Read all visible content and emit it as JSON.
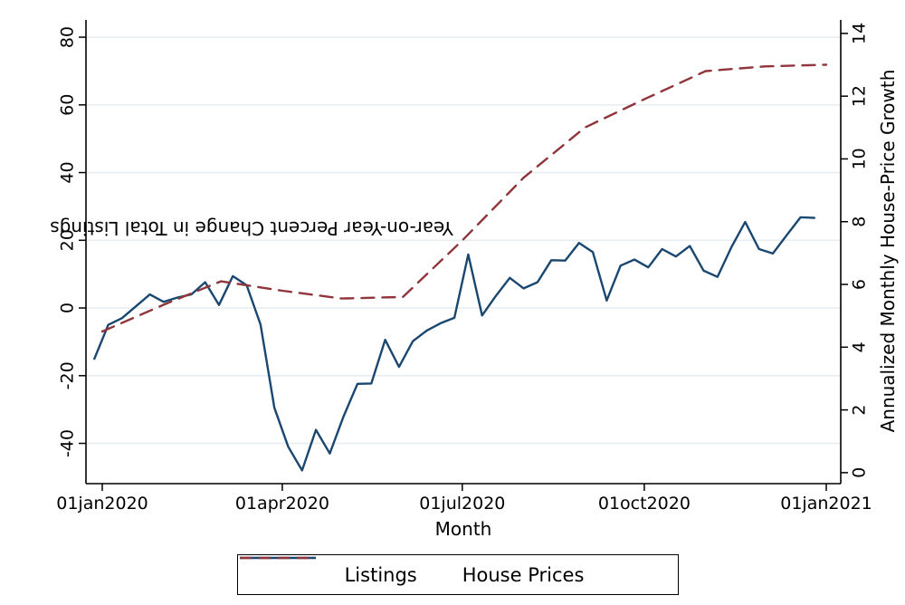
{
  "chart_data": {
    "type": "line",
    "title": "",
    "x_axis": {
      "title": "Month",
      "ticks": [
        {
          "date": "2020-01-01",
          "label": "01jan2020"
        },
        {
          "date": "2020-04-01",
          "label": "01apr2020"
        },
        {
          "date": "2020-07-01",
          "label": "01jul2020"
        },
        {
          "date": "2020-10-01",
          "label": "01oct2020"
        },
        {
          "date": "2021-01-01",
          "label": "01jan2021"
        }
      ]
    },
    "left_axis": {
      "title": "Year-on-Year Percent Change in Total Listings",
      "ticks": [
        -40,
        -20,
        0,
        20,
        40,
        60,
        80
      ],
      "range": [
        -51.9,
        85.1
      ]
    },
    "right_axis": {
      "title": "Annualized Monthly House-Price Growth",
      "ticks": [
        0,
        2,
        4,
        6,
        8,
        10,
        12,
        14
      ],
      "range": [
        -0.35,
        14.43
      ]
    },
    "grid": true,
    "legend_position": "bottom",
    "series": [
      {
        "name": "Listings",
        "axis": "left",
        "style": "solid",
        "color": "#1a476f",
        "frequency": "weekly",
        "dates": [
          "2019-12-28",
          "2020-01-04",
          "2020-01-11",
          "2020-01-18",
          "2020-01-25",
          "2020-02-01",
          "2020-02-08",
          "2020-02-15",
          "2020-02-22",
          "2020-02-29",
          "2020-03-07",
          "2020-03-14",
          "2020-03-21",
          "2020-03-28",
          "2020-04-04",
          "2020-04-11",
          "2020-04-18",
          "2020-04-25",
          "2020-05-02",
          "2020-05-09",
          "2020-05-16",
          "2020-05-23",
          "2020-05-30",
          "2020-06-06",
          "2020-06-13",
          "2020-06-20",
          "2020-06-27",
          "2020-07-04",
          "2020-07-11",
          "2020-07-18",
          "2020-07-25",
          "2020-08-01",
          "2020-08-08",
          "2020-08-15",
          "2020-08-22",
          "2020-08-29",
          "2020-09-05",
          "2020-09-12",
          "2020-09-19",
          "2020-09-26",
          "2020-10-03",
          "2020-10-10",
          "2020-10-17",
          "2020-10-24",
          "2020-10-31",
          "2020-11-07",
          "2020-11-14",
          "2020-11-21",
          "2020-11-28",
          "2020-12-05",
          "2020-12-12",
          "2020-12-19",
          "2020-12-26"
        ],
        "values": [
          -15,
          -5,
          -3,
          0.5,
          4,
          1.8,
          3.1,
          4,
          7.6,
          0.9,
          9.4,
          6.7,
          -4.9,
          -29.5,
          -41,
          -48,
          -36,
          -43,
          -32,
          -22.4,
          -22.3,
          -9.4,
          -17.4,
          -9.8,
          -6.7,
          -4.5,
          -2.9,
          15.8,
          -2.2,
          3.6,
          8.9,
          5.8,
          7.6,
          14.1,
          14.0,
          19.2,
          16.5,
          2.2,
          12.5,
          14.3,
          12.0,
          17.4,
          15.2,
          18.3,
          11.0,
          9.2,
          17.9,
          25.4,
          17.4,
          16.1,
          21.5,
          26.8,
          26.6
        ]
      },
      {
        "name": "House Prices",
        "axis": "right",
        "style": "dashed",
        "color": "#90353b",
        "frequency": "monthly",
        "dates": [
          "2020-01-01",
          "2020-02-01",
          "2020-03-01",
          "2020-04-01",
          "2020-05-01",
          "2020-06-01",
          "2020-07-01",
          "2020-08-01",
          "2020-09-01",
          "2020-10-01",
          "2020-11-01",
          "2020-12-01",
          "2021-01-01"
        ],
        "values": [
          4.5,
          5.35,
          6.1,
          5.8,
          5.55,
          5.6,
          7.4,
          9.4,
          11.0,
          11.9,
          12.8,
          12.95,
          13.0
        ]
      }
    ]
  },
  "colors": {
    "background": "#ffffff",
    "grid": "#e8eef0",
    "axis": "#000000",
    "text": "#000000",
    "listings_line": "#1a476f",
    "house_prices_line": "#90353b"
  }
}
